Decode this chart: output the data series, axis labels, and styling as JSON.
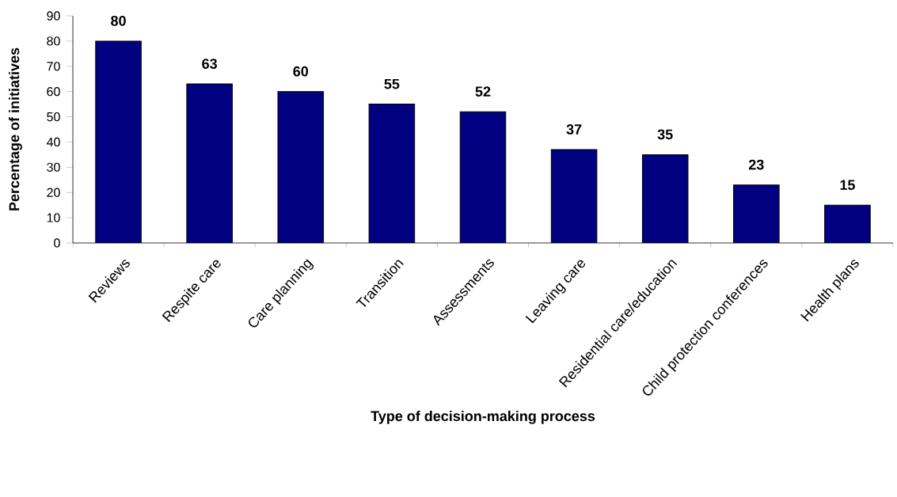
{
  "chart_data": {
    "type": "bar",
    "xlabel": "Type of decision-making process",
    "ylabel": "Percentage of initiatives",
    "categories": [
      "Reviews",
      "Respite care",
      "Care planning",
      "Transition",
      "Assessments",
      "Leaving care",
      "Residential care/education",
      "Child protection conferences",
      "Health plans"
    ],
    "values": [
      80,
      63,
      60,
      55,
      52,
      37,
      35,
      23,
      15
    ],
    "color": "#000080",
    "ylim": [
      0,
      90
    ],
    "yticks": [
      0,
      10,
      20,
      30,
      40,
      50,
      60,
      70,
      80,
      90
    ],
    "data_labels": true
  }
}
